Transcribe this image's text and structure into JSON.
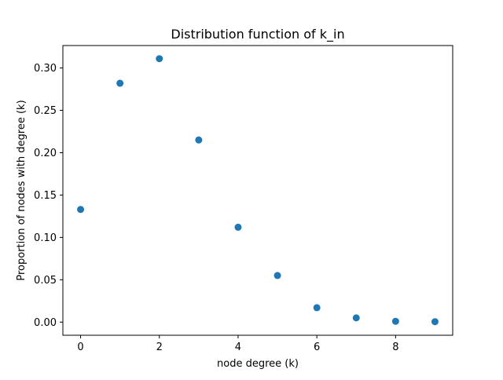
{
  "chart_data": {
    "type": "scatter",
    "title": "Distribution function of k_in",
    "xlabel": "node degree (k)",
    "ylabel": "Proportion of nodes with degree (k)",
    "x": [
      0,
      1,
      2,
      3,
      4,
      5,
      6,
      7,
      8,
      9
    ],
    "y": [
      0.133,
      0.282,
      0.311,
      0.215,
      0.112,
      0.055,
      0.017,
      0.005,
      0.001,
      0.0005
    ],
    "xlim": [
      -0.45,
      9.45
    ],
    "ylim": [
      -0.0155,
      0.3265
    ],
    "xticks": [
      0,
      2,
      4,
      6,
      8
    ],
    "xtick_labels": [
      "0",
      "2",
      "4",
      "6",
      "8"
    ],
    "yticks": [
      0,
      0.05,
      0.1,
      0.15,
      0.2,
      0.25,
      0.3
    ],
    "ytick_labels": [
      "0.00",
      "0.05",
      "0.10",
      "0.15",
      "0.20",
      "0.25",
      "0.30"
    ],
    "marker_color": "#1f77b4",
    "grid": false,
    "legend": false
  }
}
